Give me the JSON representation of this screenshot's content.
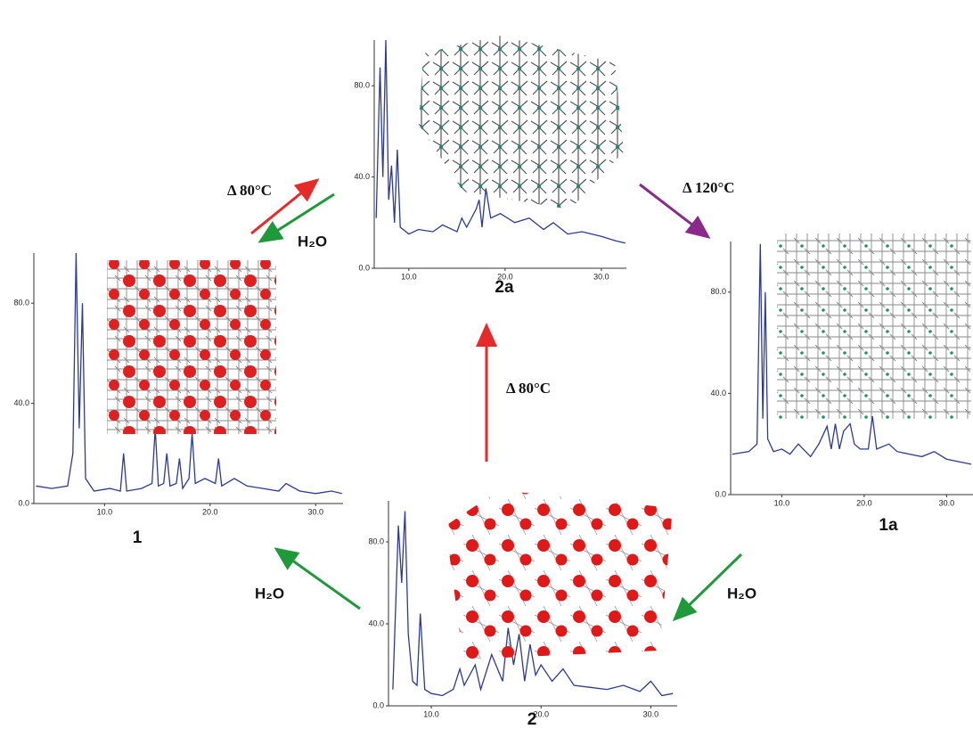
{
  "chart_data": [
    {
      "type": "line",
      "title": "1",
      "color": "#2b3a9a",
      "x": [
        3.5,
        5,
        6.5,
        7.0,
        7.3,
        7.6,
        7.9,
        8.2,
        9,
        10.5,
        11.5,
        11.8,
        12.1,
        13.5,
        14.5,
        14.8,
        15.1,
        15.6,
        15.9,
        16.2,
        16.8,
        17.1,
        17.4,
        18,
        18.3,
        18.6,
        19.5,
        20.5,
        20.8,
        21.1,
        22.3,
        23.5,
        25,
        26.5,
        27.2,
        28.5,
        30,
        31.5,
        32.5
      ],
      "values": [
        7,
        6,
        7,
        20,
        100,
        30,
        80,
        10,
        5,
        6,
        5,
        20,
        5,
        6,
        8,
        30,
        7,
        8,
        20,
        7,
        8,
        18,
        6,
        10,
        28,
        8,
        10,
        8,
        18,
        7,
        10,
        7,
        6,
        5,
        8,
        5,
        4,
        5,
        4
      ],
      "xlim": [
        3.3,
        32.6
      ],
      "ylim": [
        0,
        100
      ],
      "xticks": [
        {
          "value": 10,
          "label": "10.0"
        },
        {
          "value": 20,
          "label": "20.0"
        },
        {
          "value": 30,
          "label": "30.0"
        }
      ],
      "yticks": [
        {
          "value": 0,
          "label": "0.0"
        },
        {
          "value": 40,
          "label": "40.0"
        },
        {
          "value": 80,
          "label": "80.0"
        }
      ]
    },
    {
      "type": "line",
      "title": "2a",
      "color": "#2b3a9a",
      "x": [
        6.6,
        7.0,
        7.3,
        7.6,
        7.9,
        8.2,
        8.5,
        8.8,
        9.1,
        10,
        11,
        12.5,
        13.5,
        15,
        15.5,
        16,
        17,
        17.3,
        17.6,
        18,
        18.5,
        19.5,
        21,
        22.5,
        24,
        25,
        26.5,
        28,
        30,
        31.5,
        32.5
      ],
      "values": [
        22,
        88,
        40,
        100,
        30,
        45,
        20,
        52,
        18,
        15,
        17,
        16,
        19,
        16,
        22,
        18,
        26,
        30,
        18,
        35,
        22,
        24,
        20,
        22,
        17,
        20,
        15,
        16,
        14,
        12,
        11
      ],
      "xlim": [
        6.4,
        32.6
      ],
      "ylim": [
        0,
        100
      ],
      "xticks": [
        {
          "value": 10,
          "label": "10.0"
        },
        {
          "value": 20,
          "label": "20.0"
        },
        {
          "value": 30,
          "label": "30.0"
        }
      ],
      "yticks": [
        {
          "value": 0,
          "label": "0.0"
        },
        {
          "value": 40,
          "label": "40.0"
        },
        {
          "value": 80,
          "label": "80.0"
        }
      ]
    },
    {
      "type": "line",
      "title": "1a",
      "color": "#2b3a9a",
      "x": [
        4,
        6,
        7.0,
        7.4,
        7.7,
        8.0,
        8.3,
        9,
        10,
        11,
        12,
        13.5,
        14.5,
        15.5,
        16,
        16.5,
        17,
        17.5,
        18.3,
        18.8,
        19.5,
        20.5,
        21,
        21.5,
        23,
        24,
        25.5,
        27,
        28.5,
        30,
        31.5,
        33
      ],
      "values": [
        16,
        17,
        20,
        99,
        30,
        80,
        22,
        17,
        18,
        16,
        20,
        15,
        20,
        27,
        18,
        28,
        18,
        25,
        28,
        20,
        18,
        18,
        31,
        18,
        20,
        17,
        16,
        15,
        17,
        14,
        13,
        12
      ],
      "xlim": [
        3.8,
        33.2
      ],
      "ylim": [
        0,
        100
      ],
      "xticks": [
        {
          "value": 10,
          "label": "10.0"
        },
        {
          "value": 20,
          "label": "20.0"
        },
        {
          "value": 30,
          "label": "30.0"
        }
      ],
      "yticks": [
        {
          "value": 0,
          "label": "0.0"
        },
        {
          "value": 40,
          "label": "40.0"
        },
        {
          "value": 80,
          "label": "80.0"
        }
      ]
    },
    {
      "type": "line",
      "title": "2",
      "color": "#2b3a9a",
      "x": [
        6.5,
        7.0,
        7.3,
        7.6,
        7.9,
        8.3,
        8.7,
        9.0,
        9.4,
        10,
        11,
        12,
        12.6,
        13,
        14,
        14.5,
        15.5,
        16.5,
        17,
        17.5,
        18,
        18.5,
        19,
        19.5,
        20,
        21,
        22,
        23,
        24.5,
        26,
        27.5,
        29,
        30,
        31,
        32
      ],
      "values": [
        8,
        88,
        60,
        95,
        35,
        12,
        10,
        45,
        8,
        6,
        5,
        8,
        18,
        10,
        20,
        8,
        25,
        12,
        38,
        20,
        35,
        12,
        30,
        15,
        20,
        12,
        18,
        10,
        9,
        8,
        10,
        7,
        12,
        5,
        6
      ],
      "xlim": [
        6.1,
        32.4
      ],
      "ylim": [
        0,
        100
      ],
      "xticks": [
        {
          "value": 10,
          "label": "10.0"
        },
        {
          "value": 20,
          "label": "20.0"
        },
        {
          "value": 30,
          "label": "30.0"
        }
      ],
      "yticks": [
        {
          "value": 0,
          "label": "0.0"
        },
        {
          "value": 40,
          "label": "40.0"
        },
        {
          "value": 80,
          "label": "80.0"
        }
      ]
    }
  ],
  "diagram": {
    "arrows": [
      {
        "label": "Δ 80°C"
      },
      {
        "label": "H₂O"
      },
      {
        "label": "Δ 120°C"
      },
      {
        "label": "Δ 80°C"
      },
      {
        "label": "H₂O"
      },
      {
        "label": "H₂O"
      }
    ]
  }
}
